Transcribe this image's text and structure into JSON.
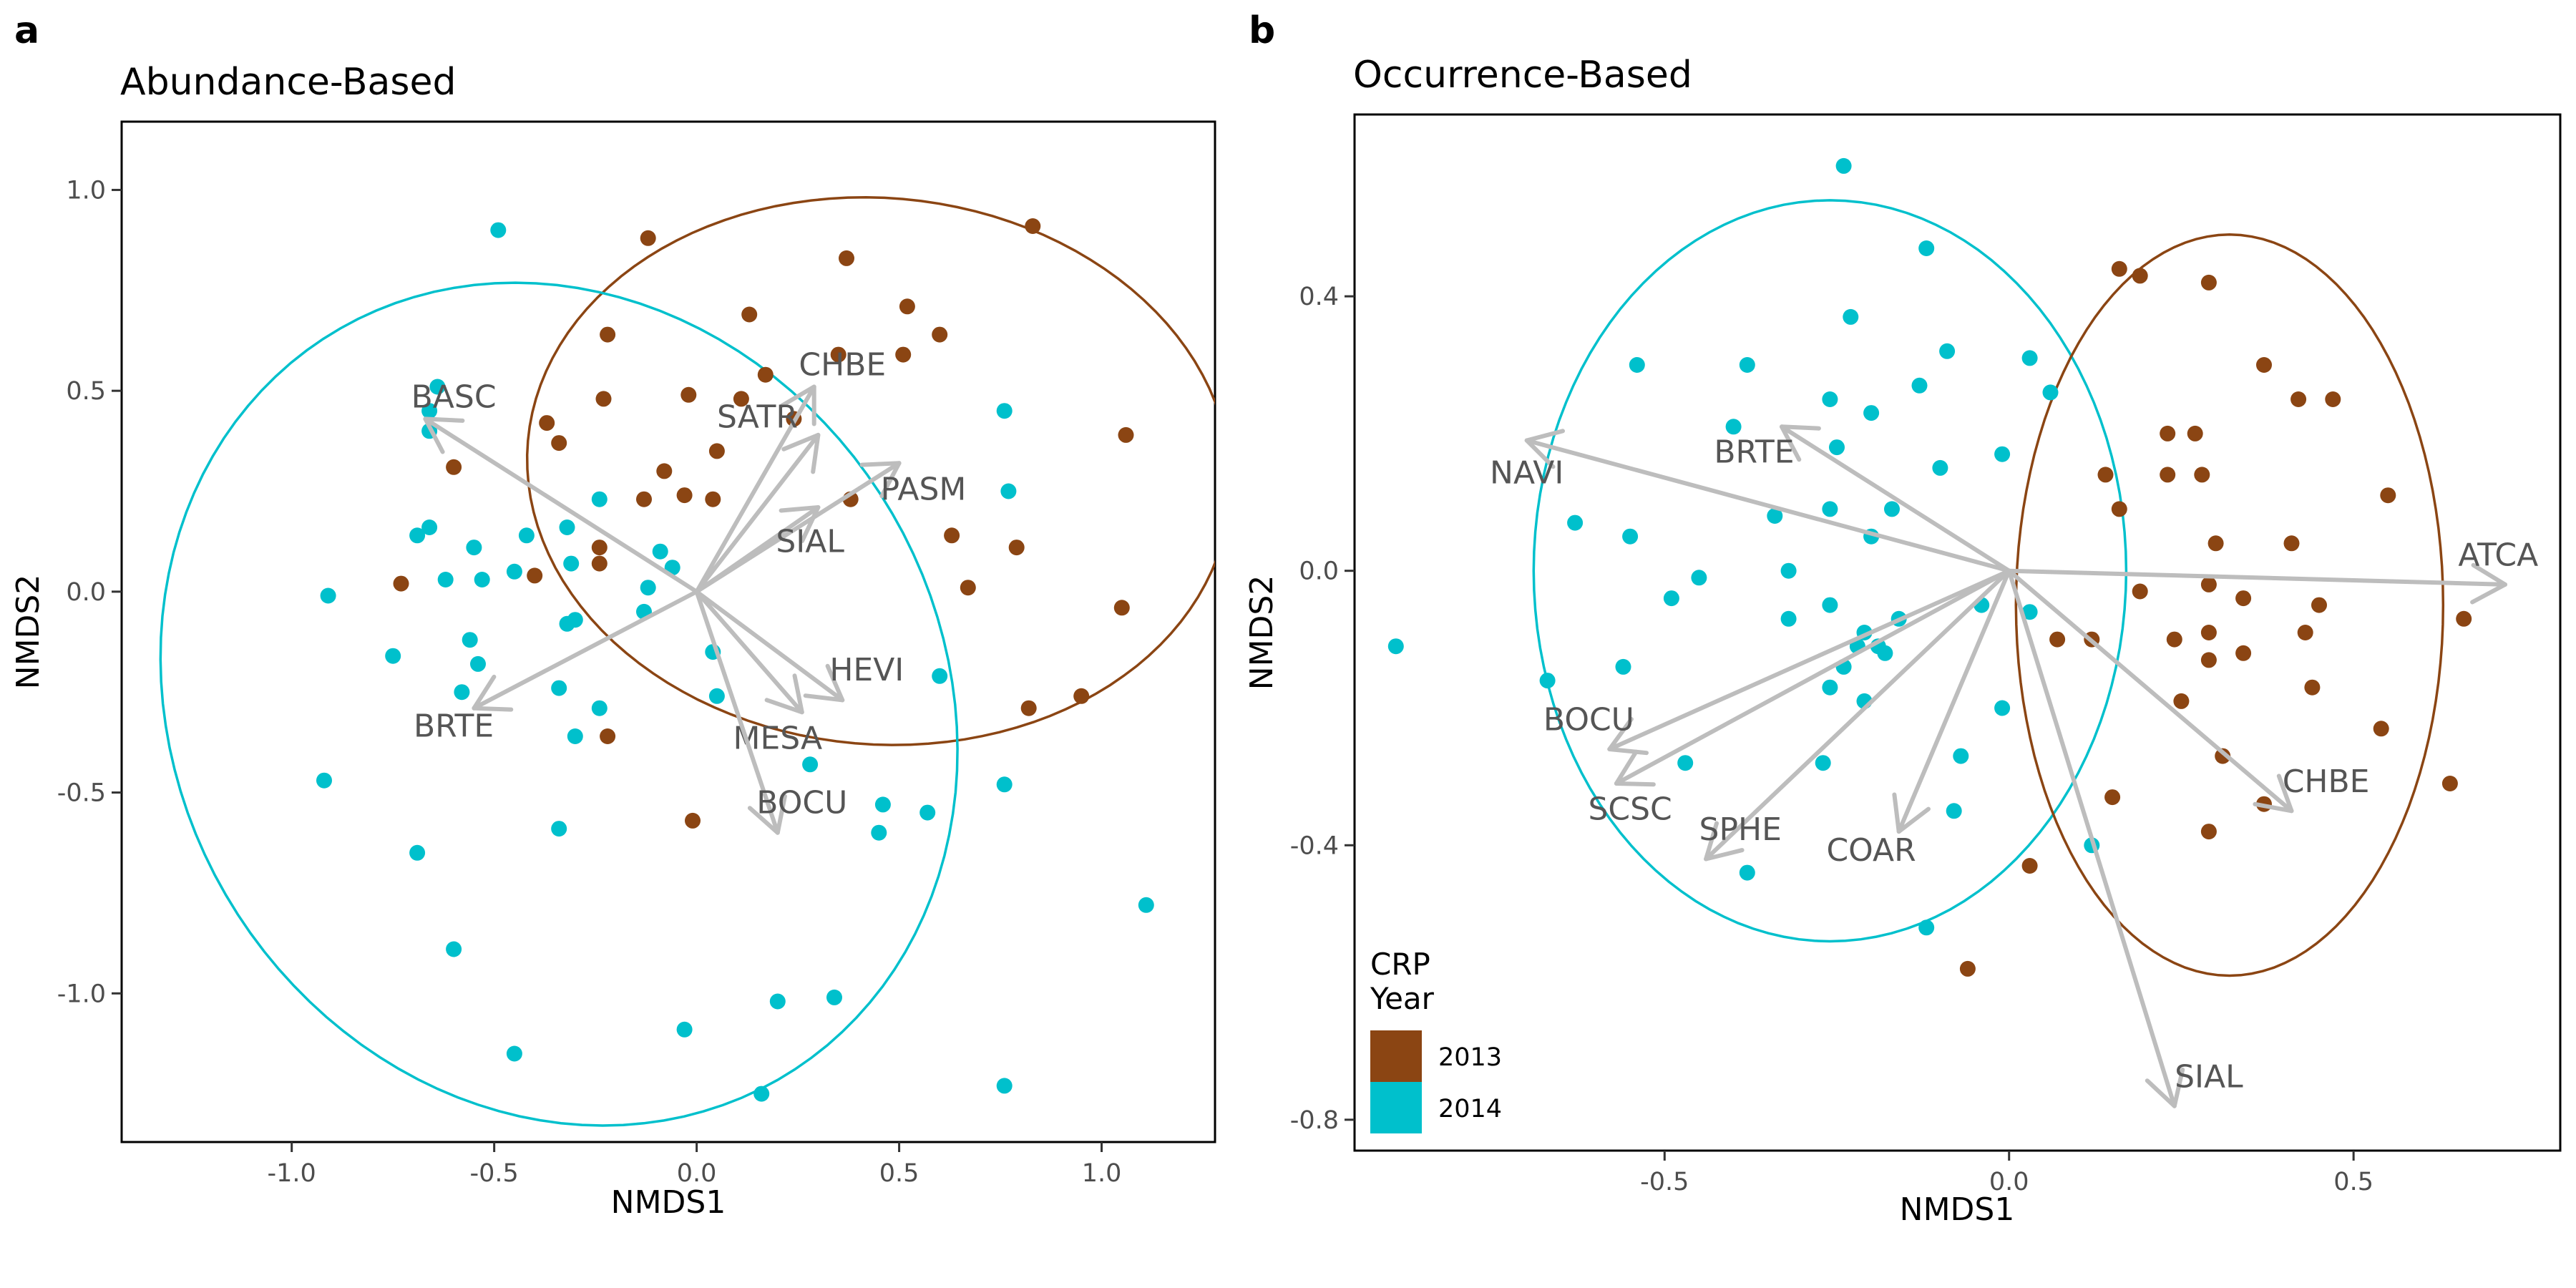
{
  "colors": {
    "2013": "#8b4513",
    "2014": "#00c0cc",
    "arrow": "#bdbdbd",
    "arrowText": "#555555"
  },
  "legend": {
    "title_line1": "CRP",
    "title_line2": "Year",
    "entries": [
      "2013",
      "2014"
    ]
  },
  "chart_data": [
    {
      "type": "scatter",
      "panel_letter": "a",
      "title": "Abundance-Based",
      "xlabel": "NMDS1",
      "ylabel": "NMDS2",
      "xlim": [
        -1.42,
        1.28
      ],
      "ylim": [
        -1.37,
        1.17
      ],
      "xticks": [
        -1.0,
        -0.5,
        0.0,
        0.5,
        1.0
      ],
      "xtick_labels": [
        "-1.0",
        "-0.5",
        "0.0",
        "0.5",
        "1.0"
      ],
      "yticks": [
        -1.0,
        -0.5,
        0.0,
        0.5,
        1.0
      ],
      "ytick_labels": [
        "-1.0",
        "-0.5",
        "0.0",
        "0.5",
        "1.0"
      ],
      "grid": false,
      "ellipses": [
        {
          "series": "2013",
          "cx": 0.45,
          "cy": 0.3,
          "rx": 0.87,
          "ry": 0.68,
          "angle_deg": -5
        },
        {
          "series": "2014",
          "cx": -0.34,
          "cy": -0.28,
          "rx": 0.95,
          "ry": 1.08,
          "angle_deg": 30
        }
      ],
      "vectors": [
        {
          "label": "BASC",
          "x": -0.67,
          "y": 0.43,
          "lx": -0.6,
          "ly": 0.48
        },
        {
          "label": "BRTE",
          "x": -0.55,
          "y": -0.29,
          "lx": -0.6,
          "ly": -0.34
        },
        {
          "label": "CHBE",
          "x": 0.29,
          "y": 0.51,
          "lx": 0.36,
          "ly": 0.56
        },
        {
          "label": "SATR",
          "x": 0.3,
          "y": 0.39,
          "lx": 0.15,
          "ly": 0.43
        },
        {
          "label": "PASM",
          "x": 0.5,
          "y": 0.32,
          "lx": 0.56,
          "ly": 0.25
        },
        {
          "label": "SIAL",
          "x": 0.3,
          "y": 0.21,
          "lx": 0.28,
          "ly": 0.12
        },
        {
          "label": "HEVI",
          "x": 0.36,
          "y": -0.27,
          "lx": 0.42,
          "ly": -0.2
        },
        {
          "label": "MESA",
          "x": 0.26,
          "y": -0.3,
          "lx": 0.2,
          "ly": -0.37
        },
        {
          "label": "BOCU",
          "x": 0.2,
          "y": -0.6,
          "lx": 0.26,
          "ly": -0.53
        }
      ],
      "series": [
        {
          "name": "2013",
          "points": [
            [
              0.83,
              0.91
            ],
            [
              -0.12,
              0.88
            ],
            [
              0.37,
              0.83
            ],
            [
              0.52,
              0.71
            ],
            [
              0.13,
              0.69
            ],
            [
              -0.22,
              0.64
            ],
            [
              0.6,
              0.64
            ],
            [
              0.35,
              0.59
            ],
            [
              0.51,
              0.59
            ],
            [
              0.17,
              0.54
            ],
            [
              -0.02,
              0.49
            ],
            [
              -0.23,
              0.48
            ],
            [
              0.11,
              0.48
            ],
            [
              -0.37,
              0.42
            ],
            [
              0.24,
              0.43
            ],
            [
              1.06,
              0.39
            ],
            [
              -0.34,
              0.37
            ],
            [
              0.05,
              0.35
            ],
            [
              -0.6,
              0.31
            ],
            [
              -0.08,
              0.3
            ],
            [
              -0.13,
              0.23
            ],
            [
              -0.03,
              0.24
            ],
            [
              0.04,
              0.23
            ],
            [
              0.38,
              0.23
            ],
            [
              0.63,
              0.14
            ],
            [
              0.79,
              0.11
            ],
            [
              -0.24,
              0.11
            ],
            [
              -0.24,
              0.07
            ],
            [
              -0.4,
              0.04
            ],
            [
              0.67,
              0.01
            ],
            [
              -0.73,
              0.02
            ],
            [
              1.05,
              -0.04
            ],
            [
              0.95,
              -0.26
            ],
            [
              0.82,
              -0.29
            ],
            [
              -0.22,
              -0.36
            ],
            [
              -0.01,
              -0.57
            ]
          ]
        },
        {
          "name": "2014",
          "points": [
            [
              -0.49,
              0.9
            ],
            [
              -0.64,
              0.51
            ],
            [
              -0.66,
              0.45
            ],
            [
              -0.66,
              0.4
            ],
            [
              0.76,
              0.45
            ],
            [
              0.77,
              0.25
            ],
            [
              -0.24,
              0.23
            ],
            [
              -0.66,
              0.16
            ],
            [
              -0.69,
              0.14
            ],
            [
              -0.55,
              0.11
            ],
            [
              -0.32,
              0.16
            ],
            [
              -0.42,
              0.14
            ],
            [
              -0.53,
              0.03
            ],
            [
              -0.62,
              0.03
            ],
            [
              -0.45,
              0.05
            ],
            [
              -0.31,
              0.07
            ],
            [
              -0.09,
              0.1
            ],
            [
              -0.06,
              0.06
            ],
            [
              -0.12,
              0.01
            ],
            [
              -0.91,
              -0.01
            ],
            [
              -0.13,
              -0.05
            ],
            [
              -0.3,
              -0.07
            ],
            [
              -0.32,
              -0.08
            ],
            [
              -0.56,
              -0.12
            ],
            [
              -0.75,
              -0.16
            ],
            [
              -0.54,
              -0.18
            ],
            [
              0.04,
              -0.15
            ],
            [
              0.6,
              -0.21
            ],
            [
              -0.58,
              -0.25
            ],
            [
              -0.34,
              -0.24
            ],
            [
              0.05,
              -0.26
            ],
            [
              -0.24,
              -0.29
            ],
            [
              -0.3,
              -0.36
            ],
            [
              0.28,
              -0.43
            ],
            [
              0.76,
              -0.48
            ],
            [
              0.46,
              -0.53
            ],
            [
              0.57,
              -0.55
            ],
            [
              -0.92,
              -0.47
            ],
            [
              -0.34,
              -0.59
            ],
            [
              0.45,
              -0.6
            ],
            [
              -0.69,
              -0.65
            ],
            [
              1.11,
              -0.78
            ],
            [
              -0.6,
              -0.89
            ],
            [
              0.34,
              -1.01
            ],
            [
              0.2,
              -1.02
            ],
            [
              -0.03,
              -1.09
            ],
            [
              -0.45,
              -1.15
            ],
            [
              0.76,
              -1.23
            ],
            [
              0.16,
              -1.25
            ]
          ]
        }
      ]
    },
    {
      "type": "scatter",
      "panel_letter": "b",
      "title": "Occurrence-Based",
      "xlabel": "NMDS1",
      "ylabel": "NMDS2",
      "xlim": [
        -0.95,
        0.8
      ],
      "ylim": [
        -0.845,
        0.665
      ],
      "xticks": [
        -0.5,
        0.0,
        0.5
      ],
      "xtick_labels": [
        "-0.5",
        "0.0",
        "0.5"
      ],
      "yticks": [
        -0.8,
        -0.4,
        0.0,
        0.4
      ],
      "ytick_labels": [
        "-0.8",
        "-0.4",
        "0.0",
        "0.4"
      ],
      "grid": false,
      "ellipses": [
        {
          "series": "2014",
          "cx": -0.26,
          "cy": 0.0,
          "rx": 0.43,
          "ry": 0.54,
          "angle_deg": 0
        },
        {
          "series": "2013",
          "cx": 0.32,
          "cy": -0.05,
          "rx": 0.31,
          "ry": 0.54,
          "angle_deg": 0
        }
      ],
      "vectors": [
        {
          "label": "NAVI",
          "x": -0.7,
          "y": 0.19,
          "lx": -0.7,
          "ly": 0.14
        },
        {
          "label": "BRTE",
          "x": -0.33,
          "y": 0.21,
          "lx": -0.37,
          "ly": 0.17
        },
        {
          "label": "ATCA",
          "x": 0.72,
          "y": -0.02,
          "lx": 0.71,
          "ly": 0.02
        },
        {
          "label": "CHBE",
          "x": 0.41,
          "y": -0.35,
          "lx": 0.46,
          "ly": -0.31
        },
        {
          "label": "SIAL",
          "x": 0.24,
          "y": -0.78,
          "lx": 0.29,
          "ly": -0.74
        },
        {
          "label": "BOCU",
          "x": -0.58,
          "y": -0.26,
          "lx": -0.61,
          "ly": -0.22
        },
        {
          "label": "SCSC",
          "x": -0.57,
          "y": -0.31,
          "lx": -0.55,
          "ly": -0.35
        },
        {
          "label": "SPHE",
          "x": -0.44,
          "y": -0.42,
          "lx": -0.39,
          "ly": -0.38
        },
        {
          "label": "COAR",
          "x": -0.16,
          "y": -0.38,
          "lx": -0.2,
          "ly": -0.41
        }
      ],
      "series": [
        {
          "name": "2013",
          "points": [
            [
              0.16,
              0.44
            ],
            [
              0.19,
              0.43
            ],
            [
              0.29,
              0.42
            ],
            [
              0.37,
              0.3
            ],
            [
              0.42,
              0.25
            ],
            [
              0.47,
              0.25
            ],
            [
              0.23,
              0.2
            ],
            [
              0.27,
              0.2
            ],
            [
              0.14,
              0.14
            ],
            [
              0.23,
              0.14
            ],
            [
              0.28,
              0.14
            ],
            [
              0.55,
              0.11
            ],
            [
              0.16,
              0.09
            ],
            [
              0.3,
              0.04
            ],
            [
              0.41,
              0.04
            ],
            [
              0.19,
              -0.03
            ],
            [
              0.29,
              -0.02
            ],
            [
              0.34,
              -0.04
            ],
            [
              0.45,
              -0.05
            ],
            [
              0.66,
              -0.07
            ],
            [
              0.07,
              -0.1
            ],
            [
              0.12,
              -0.1
            ],
            [
              0.24,
              -0.1
            ],
            [
              0.29,
              -0.09
            ],
            [
              0.43,
              -0.09
            ],
            [
              0.34,
              -0.12
            ],
            [
              0.29,
              -0.13
            ],
            [
              0.44,
              -0.17
            ],
            [
              0.25,
              -0.19
            ],
            [
              0.54,
              -0.23
            ],
            [
              0.31,
              -0.27
            ],
            [
              0.64,
              -0.31
            ],
            [
              0.15,
              -0.33
            ],
            [
              0.37,
              -0.34
            ],
            [
              0.29,
              -0.38
            ],
            [
              0.03,
              -0.43
            ],
            [
              -0.06,
              -0.58
            ]
          ]
        },
        {
          "name": "2014",
          "points": [
            [
              -0.24,
              0.59
            ],
            [
              -0.12,
              0.47
            ],
            [
              -0.23,
              0.37
            ],
            [
              -0.09,
              0.32
            ],
            [
              0.03,
              0.31
            ],
            [
              -0.38,
              0.3
            ],
            [
              -0.54,
              0.3
            ],
            [
              -0.13,
              0.27
            ],
            [
              0.06,
              0.26
            ],
            [
              -0.26,
              0.25
            ],
            [
              -0.2,
              0.23
            ],
            [
              -0.4,
              0.21
            ],
            [
              -0.01,
              0.17
            ],
            [
              -0.25,
              0.18
            ],
            [
              -0.1,
              0.15
            ],
            [
              -0.34,
              0.08
            ],
            [
              -0.26,
              0.09
            ],
            [
              -0.17,
              0.09
            ],
            [
              -0.63,
              0.07
            ],
            [
              -0.55,
              0.05
            ],
            [
              -0.2,
              0.05
            ],
            [
              -0.32,
              0.0
            ],
            [
              -0.45,
              -0.01
            ],
            [
              -0.49,
              -0.04
            ],
            [
              -0.26,
              -0.05
            ],
            [
              -0.04,
              -0.05
            ],
            [
              -0.16,
              -0.07
            ],
            [
              -0.32,
              -0.07
            ],
            [
              0.03,
              -0.06
            ],
            [
              -0.21,
              -0.09
            ],
            [
              -0.22,
              -0.11
            ],
            [
              -0.19,
              -0.11
            ],
            [
              -0.18,
              -0.12
            ],
            [
              -0.24,
              -0.14
            ],
            [
              -0.56,
              -0.14
            ],
            [
              -0.67,
              -0.16
            ],
            [
              -0.26,
              -0.17
            ],
            [
              -0.21,
              -0.19
            ],
            [
              -0.01,
              -0.2
            ],
            [
              -0.07,
              -0.27
            ],
            [
              -0.47,
              -0.28
            ],
            [
              -0.27,
              -0.28
            ],
            [
              -0.08,
              -0.35
            ],
            [
              0.12,
              -0.4
            ],
            [
              -0.38,
              -0.44
            ],
            [
              -0.89,
              -0.11
            ],
            [
              -0.12,
              -0.52
            ]
          ]
        }
      ]
    }
  ]
}
